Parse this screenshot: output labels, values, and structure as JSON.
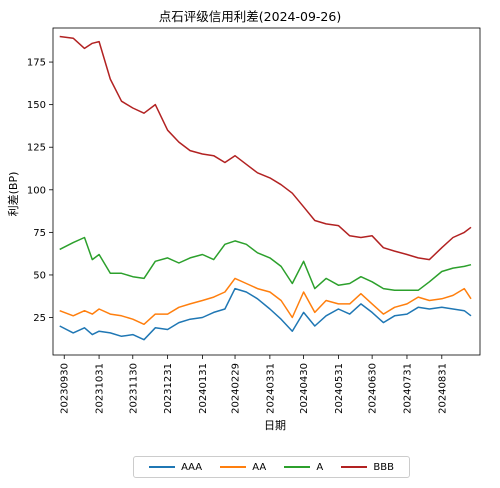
{
  "chart_data": {
    "type": "line",
    "title": "点石评级信用利差(2024-09-26)",
    "xlabel": "日期",
    "ylabel": "利差(BP)",
    "x_ticks": [
      "20230930",
      "20231031",
      "20231130",
      "20231231",
      "20240131",
      "20240229",
      "20240331",
      "20240430",
      "20240531",
      "20240630",
      "20240731",
      "20240831"
    ],
    "y_ticks": [
      25,
      50,
      75,
      100,
      125,
      150,
      175
    ],
    "ylim": [
      3,
      195
    ],
    "legend_position": "bottom-center",
    "x_dates": [
      "20230926",
      "20231008",
      "20231018",
      "20231025",
      "20231031",
      "20231110",
      "20231120",
      "20231130",
      "20231210",
      "20231220",
      "20231231",
      "20240110",
      "20240120",
      "20240131",
      "20240210",
      "20240220",
      "20240229",
      "20240310",
      "20240320",
      "20240331",
      "20240410",
      "20240420",
      "20240430",
      "20240510",
      "20240520",
      "20240531",
      "20240610",
      "20240620",
      "20240630",
      "20240710",
      "20240720",
      "20240731",
      "20240810",
      "20240820",
      "20240831",
      "20240910",
      "20240920",
      "20240926"
    ],
    "series": [
      {
        "name": "AAA",
        "color": "#1f77b4",
        "values": [
          20,
          16,
          19,
          15,
          17,
          16,
          14,
          15,
          12,
          19,
          18,
          22,
          24,
          25,
          28,
          30,
          42,
          40,
          36,
          30,
          24,
          17,
          28,
          20,
          26,
          30,
          27,
          33,
          28,
          22,
          26,
          27,
          31,
          30,
          31,
          30,
          29,
          26
        ]
      },
      {
        "name": "AA",
        "color": "#ff7f0e",
        "values": [
          29,
          26,
          29,
          27,
          30,
          27,
          26,
          24,
          21,
          27,
          27,
          31,
          33,
          35,
          37,
          40,
          48,
          45,
          42,
          40,
          35,
          25,
          40,
          28,
          35,
          33,
          33,
          39,
          33,
          27,
          31,
          33,
          37,
          35,
          36,
          38,
          42,
          36
        ]
      },
      {
        "name": "A",
        "color": "#2ca02c",
        "values": [
          65,
          69,
          72,
          59,
          62,
          51,
          51,
          49,
          48,
          58,
          60,
          57,
          60,
          62,
          59,
          68,
          70,
          68,
          63,
          60,
          55,
          45,
          58,
          42,
          48,
          44,
          45,
          49,
          46,
          42,
          41,
          41,
          41,
          46,
          52,
          54,
          55,
          56
        ]
      },
      {
        "name": "BBB",
        "color": "#b22222",
        "values": [
          190,
          189,
          183,
          186,
          187,
          165,
          152,
          148,
          145,
          150,
          135,
          128,
          123,
          121,
          120,
          116,
          120,
          115,
          110,
          107,
          103,
          98,
          90,
          82,
          80,
          79,
          73,
          72,
          73,
          66,
          64,
          62,
          60,
          59,
          66,
          72,
          75,
          78
        ]
      }
    ]
  }
}
